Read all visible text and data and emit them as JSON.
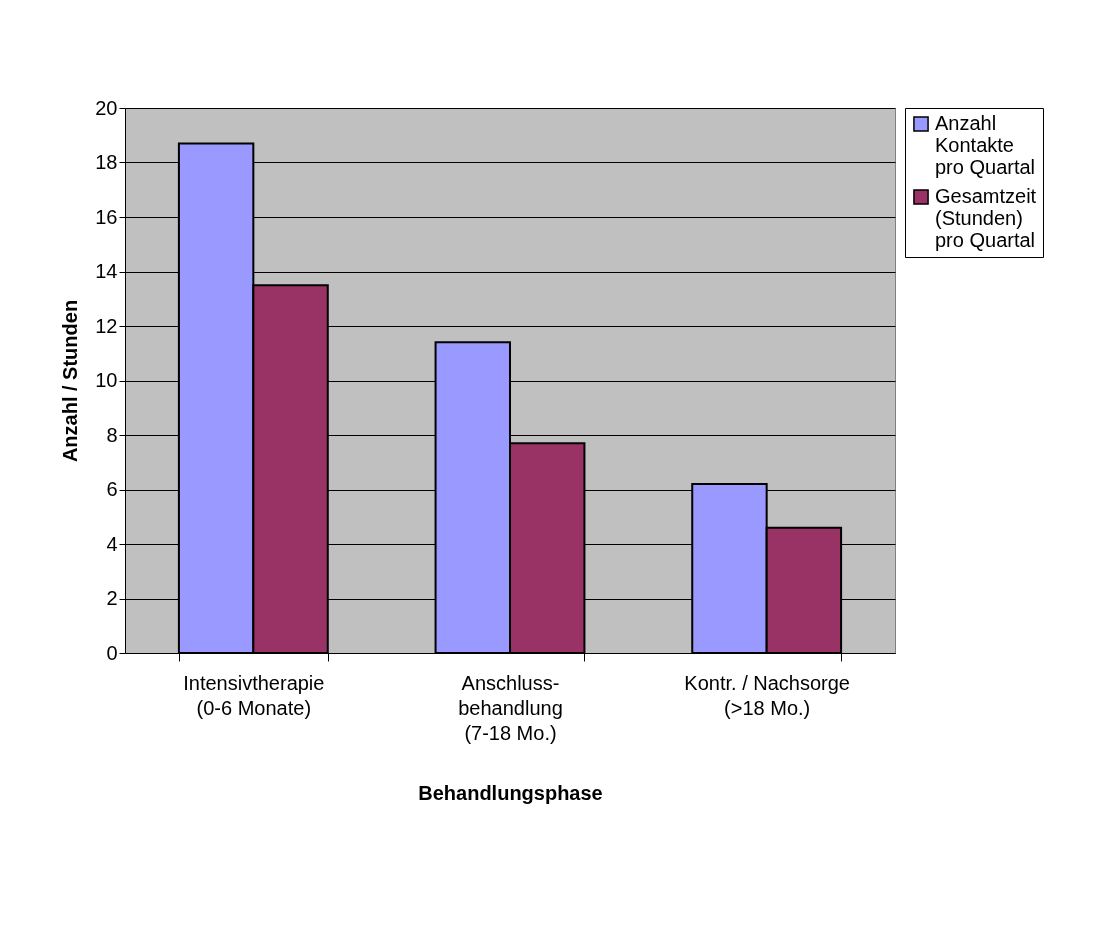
{
  "chart_data": {
    "type": "bar",
    "xlabel": "Behandlungsphase",
    "ylabel": "Anzahl / Stunden",
    "categories": [
      "Intensivtherapie\n(0-6 Monate)",
      "Anschluss-\nbehandlung\n(7-18 Mo.)",
      "Kontr. / Nachsorge\n(>18 Mo.)"
    ],
    "series": [
      {
        "name": "Anzahl Kontakte pro Quartal",
        "color": "#9999ff",
        "values": [
          18.7,
          11.4,
          6.2
        ]
      },
      {
        "name": "Gesamtzeit (Stunden) pro Quartal",
        "color": "#993366",
        "values": [
          13.5,
          7.7,
          4.6
        ]
      }
    ],
    "ylim": [
      0,
      20
    ],
    "yticks": [
      0,
      2,
      4,
      6,
      8,
      10,
      12,
      14,
      16,
      18,
      20
    ],
    "grid": "y",
    "legend": "right"
  }
}
